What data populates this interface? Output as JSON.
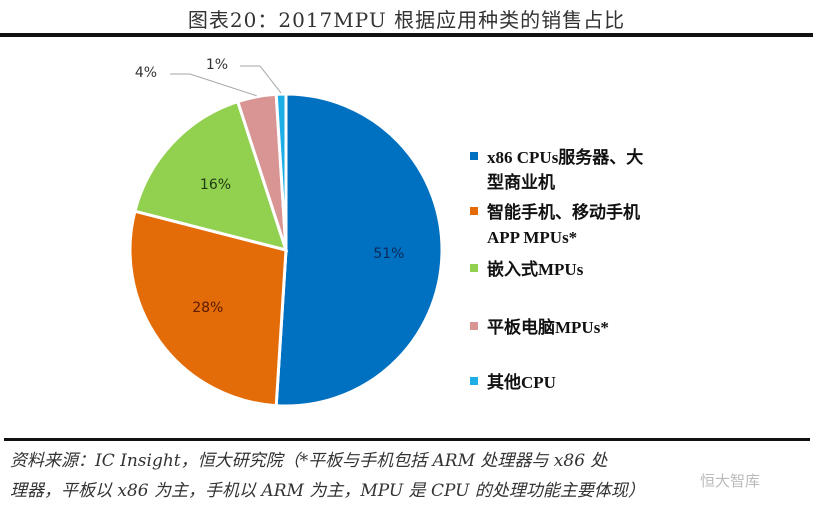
{
  "chart_data": {
    "type": "pie",
    "title": "图表20：2017MPU 根据应用种类的销售占比",
    "start_angle": "12 o'clock",
    "direction": "clockwise",
    "slices": [
      {
        "label": "x86 CPUs服务器、大型商业机",
        "value": 51,
        "data_label": "51%",
        "color": "#0070C0"
      },
      {
        "label": "智能手机、移动手机APP MPUs*",
        "value": 28,
        "data_label": "28%",
        "color": "#E36C09"
      },
      {
        "label": "嵌入式MPUs",
        "value": 16,
        "data_label": "16%",
        "color": "#92D050"
      },
      {
        "label": "平板电脑MPUs*",
        "value": 4,
        "data_label": "4%",
        "color": "#D99594"
      },
      {
        "label": "其他CPU",
        "value": 1,
        "data_label": "1%",
        "color": "#1EAEE6"
      }
    ],
    "legend_position": "right"
  },
  "legend": {
    "items": [
      {
        "line1": "x86 CPUs服务器、大",
        "line2": "型商业机"
      },
      {
        "line1": "智能手机、移动手机",
        "line2": "APP MPUs*"
      },
      {
        "line1": "嵌入式MPUs",
        "line2": ""
      },
      {
        "line1": "平板电脑MPUs*",
        "line2": ""
      },
      {
        "line1": "其他CPU",
        "line2": ""
      }
    ]
  },
  "source": {
    "line1": "资料来源：IC Insight，恒大研究院（*平板与手机包括 ARM 处理器与 x86 处",
    "line2": "理器，平板以 x86 为主，手机以 ARM 为主，MPU 是 CPU 的处理功能主要体现）"
  },
  "watermark": "恒大智库"
}
